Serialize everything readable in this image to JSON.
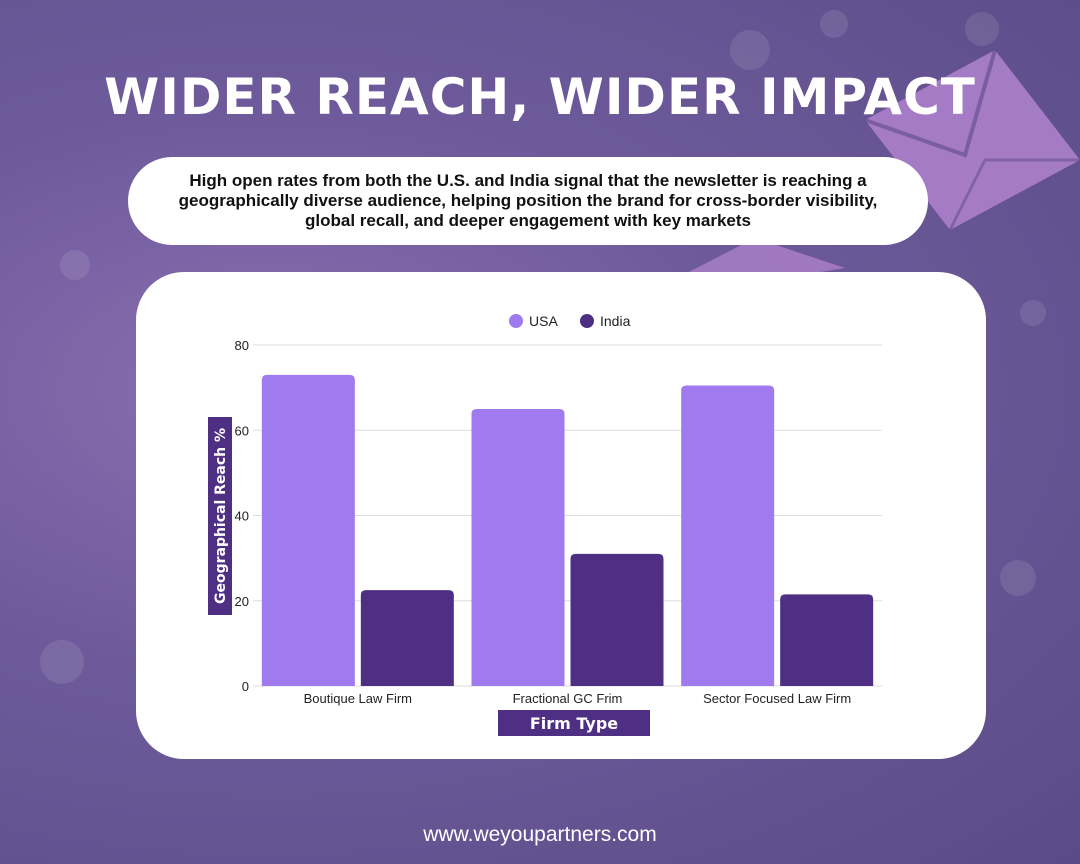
{
  "headline": "WIDER REACH, WIDER IMPACT",
  "subtitle": "High open rates from both the U.S. and India signal that the newsletter is reaching a geographically diverse audience, helping position the brand for cross-border visibility, global recall, and deeper engagement with key markets",
  "footer": "www.weyoupartners.com",
  "colors": {
    "background": "#6f5b9c",
    "usa": "#a07bef",
    "india": "#4e2f84",
    "label_box": "#4e2f84"
  },
  "chart_data": {
    "type": "bar",
    "categories": [
      "Boutique Law Firm",
      "Fractional GC Frim",
      "Sector Focused Law Firm"
    ],
    "series": [
      {
        "name": "USA",
        "values": [
          73,
          65,
          70.5
        ]
      },
      {
        "name": "India",
        "values": [
          22.5,
          31,
          21.5
        ]
      }
    ],
    "xlabel": "Firm Type",
    "ylabel": "Geographical Reach  %",
    "ylim": [
      0,
      80
    ],
    "yticks": [
      0,
      20,
      40,
      60,
      80
    ],
    "grid": true,
    "legend": "top-center"
  }
}
